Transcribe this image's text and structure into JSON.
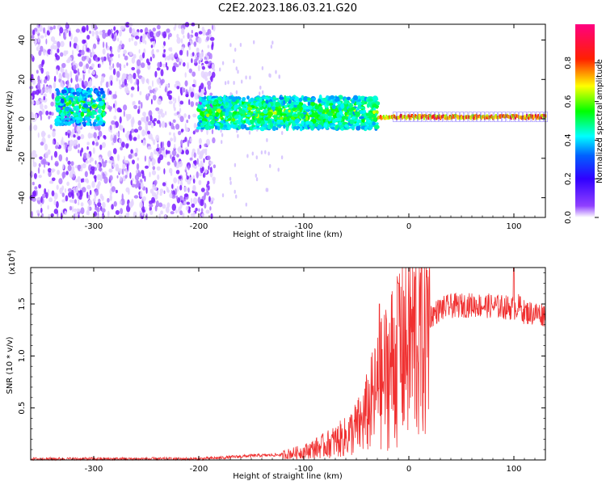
{
  "title": "C2E2.2023.186.03.21.G20",
  "chart_data": [
    {
      "type": "heatmap",
      "xlabel": "Height of straight line (km)",
      "ylabel": "Frequency (Hz)",
      "xlim": [
        -360,
        130
      ],
      "ylim": [
        -50,
        48
      ],
      "xticks": [
        -300,
        -200,
        -100,
        0,
        100
      ],
      "yticks": [
        40,
        20,
        0,
        -20,
        -40
      ],
      "colorbar": {
        "label": "Normalized spectral amplitude",
        "range": [
          0.0,
          1.0
        ],
        "ticks": [
          "0.0",
          "0.2",
          "0.4",
          "0.6",
          "0.8"
        ],
        "colormap": [
          "#ffffff",
          "#8000ff",
          "#0000ff",
          "#00ffff",
          "#00ff00",
          "#ffff00",
          "#ff0000",
          "#ff0080"
        ]
      },
      "features": [
        {
          "desc": "scattered noise",
          "x_range": [
            -360,
            -185
          ],
          "f_range": [
            -50,
            48
          ],
          "level": 0.15
        },
        {
          "desc": "early band",
          "x_range": [
            -335,
            -290
          ],
          "f_center": 6,
          "f_halfwidth": 9,
          "level": 0.35
        },
        {
          "desc": "main band",
          "x_range": [
            -200,
            -30
          ],
          "f_center": 3,
          "f_halfwidth": 8,
          "level": 0.4
        },
        {
          "desc": "narrow carrier",
          "x_range": [
            -30,
            130
          ],
          "f_center": 1,
          "f_halfwidth": 2,
          "level": 0.75
        }
      ]
    },
    {
      "type": "line",
      "xlabel": "Height of straight line (km)",
      "ylabel": "SNR (10 * v/v)",
      "yscale_label": "(x10",
      "yscale_exp": "4",
      "yscale_suffix": ")",
      "xlim": [
        -360,
        130
      ],
      "ylim": [
        0,
        1.85
      ],
      "xticks": [
        -300,
        -200,
        -100,
        0,
        100
      ],
      "yticks": [
        "0.5",
        "1.0",
        "1.5"
      ],
      "color": "#f03030",
      "series": [
        {
          "name": "SNR",
          "x": [
            -360,
            -300,
            -200,
            -180,
            -150,
            -120,
            -100,
            -80,
            -60,
            -45,
            -35,
            -25,
            -15,
            -10,
            -5,
            0,
            10,
            20,
            30,
            40,
            60,
            80,
            90,
            100,
            105,
            110,
            130
          ],
          "values": [
            0.01,
            0.01,
            0.01,
            0.02,
            0.04,
            0.05,
            0.08,
            0.14,
            0.22,
            0.35,
            0.55,
            0.75,
            0.95,
            1.05,
            1.12,
            1.15,
            1.2,
            1.38,
            1.45,
            1.48,
            1.49,
            1.48,
            1.47,
            1.46,
            1.48,
            1.42,
            1.4
          ]
        }
      ],
      "peaks": [
        {
          "x": -28,
          "y": 1.5
        },
        {
          "x": -10,
          "y": 1.7
        },
        {
          "x": 100,
          "y": 1.85
        }
      ]
    }
  ]
}
